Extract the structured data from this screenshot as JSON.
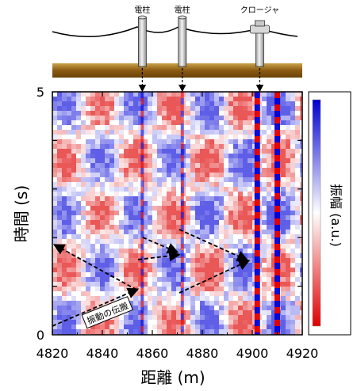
{
  "chart_data": {
    "type": "heatmap",
    "xlabel": "距離 (m)",
    "ylabel": "時間 (s)",
    "xlim": [
      4820,
      4920
    ],
    "ylim": [
      0,
      5
    ],
    "x_ticks": [
      "4820",
      "4840",
      "4860",
      "4880",
      "4900",
      "4920"
    ],
    "y_ticks": [
      "0",
      "5"
    ],
    "colorbar": {
      "label": "振幅 (a.u.)",
      "colors": [
        "#e00000",
        "#ffffff",
        "#0000d0"
      ]
    },
    "annotation": "振動の伝搬",
    "strong_signal_columns_m": [
      4856,
      4872,
      4902,
      4910
    ],
    "structures": [
      {
        "label": "電柱",
        "x_m": 4856
      },
      {
        "label": "電柱",
        "x_m": 4872
      },
      {
        "label": "クロージャ",
        "x_m": 4903
      }
    ]
  }
}
